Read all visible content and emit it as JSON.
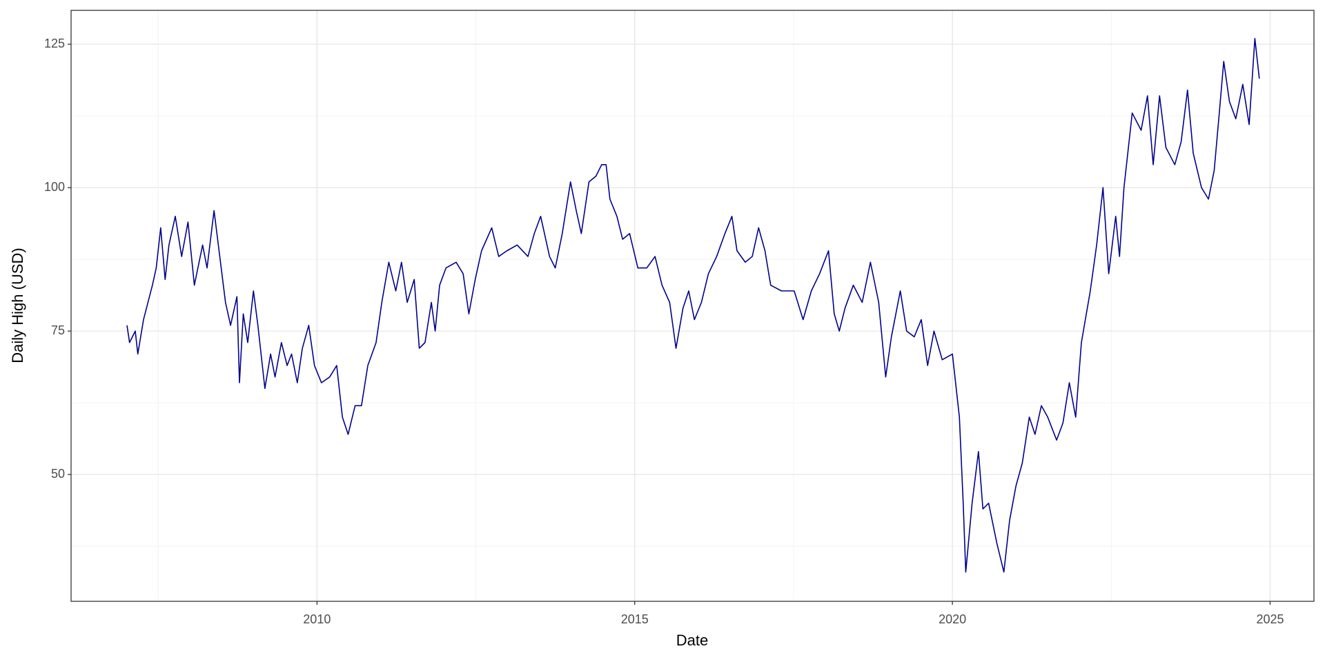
{
  "chart_data": {
    "type": "line",
    "xlabel": "Date",
    "ylabel": "Daily High (USD)",
    "x": [
      2007.01,
      2007.05,
      2007.14,
      2007.18,
      2007.27,
      2007.41,
      2007.47,
      2007.54,
      2007.61,
      2007.67,
      2007.77,
      2007.87,
      2007.97,
      2008.07,
      2008.2,
      2008.27,
      2008.38,
      2008.47,
      2008.56,
      2008.64,
      2008.74,
      2008.78,
      2008.84,
      2008.91,
      2009.0,
      2009.07,
      2009.18,
      2009.27,
      2009.34,
      2009.44,
      2009.53,
      2009.6,
      2009.69,
      2009.77,
      2009.87,
      2009.96,
      2010.07,
      2010.2,
      2010.31,
      2010.4,
      2010.49,
      2010.6,
      2010.7,
      2010.8,
      2010.93,
      2011.02,
      2011.13,
      2011.24,
      2011.33,
      2011.42,
      2011.53,
      2011.61,
      2011.7,
      2011.8,
      2011.86,
      2011.93,
      2012.03,
      2012.19,
      2012.3,
      2012.39,
      2012.49,
      2012.59,
      2012.75,
      2012.86,
      2012.99,
      2013.15,
      2013.32,
      2013.42,
      2013.52,
      2013.66,
      2013.75,
      2013.86,
      2013.99,
      2014.08,
      2014.16,
      2014.28,
      2014.39,
      2014.48,
      2014.55,
      2014.61,
      2014.72,
      2014.81,
      2014.92,
      2015.05,
      2015.19,
      2015.32,
      2015.43,
      2015.55,
      2015.65,
      2015.76,
      2015.85,
      2015.94,
      2016.05,
      2016.16,
      2016.29,
      2016.42,
      2016.53,
      2016.61,
      2016.74,
      2016.85,
      2016.95,
      2017.05,
      2017.14,
      2017.31,
      2017.51,
      2017.65,
      2017.78,
      2017.91,
      2018.05,
      2018.14,
      2018.22,
      2018.31,
      2018.44,
      2018.58,
      2018.71,
      2018.84,
      2018.95,
      2019.04,
      2019.18,
      2019.28,
      2019.4,
      2019.51,
      2019.61,
      2019.71,
      2019.84,
      2020.0,
      2020.11,
      2020.17,
      2020.21,
      2020.31,
      2020.41,
      2020.48,
      2020.57,
      2020.7,
      2020.81,
      2020.9,
      2021.0,
      2021.1,
      2021.21,
      2021.3,
      2021.4,
      2021.5,
      2021.64,
      2021.74,
      2021.84,
      2021.94,
      2022.03,
      2022.17,
      2022.27,
      2022.37,
      2022.46,
      2022.57,
      2022.63,
      2022.7,
      2022.83,
      2022.97,
      2023.07,
      2023.16,
      2023.26,
      2023.36,
      2023.5,
      2023.6,
      2023.7,
      2023.79,
      2023.92,
      2024.03,
      2024.12,
      2024.2,
      2024.27,
      2024.36,
      2024.46,
      2024.57,
      2024.67,
      2024.76,
      2024.83
    ],
    "values": [
      76,
      73,
      75,
      71,
      77,
      83,
      86,
      93,
      84,
      90,
      95,
      88,
      94,
      83,
      90,
      86,
      96,
      88,
      80,
      76,
      81,
      66,
      78,
      73,
      82,
      76,
      65,
      71,
      67,
      73,
      69,
      71,
      66,
      72,
      76,
      69,
      66,
      67,
      69,
      60,
      57,
      62,
      62,
      69,
      73,
      80,
      87,
      82,
      87,
      80,
      84,
      72,
      73,
      80,
      75,
      83,
      86,
      87,
      85,
      78,
      84,
      89,
      93,
      88,
      89,
      90,
      88,
      92,
      95,
      88,
      86,
      92,
      101,
      96,
      92,
      101,
      102,
      104,
      104,
      98,
      95,
      91,
      92,
      86,
      86,
      88,
      83,
      80,
      72,
      79,
      82,
      77,
      80,
      85,
      88,
      92,
      95,
      89,
      87,
      88,
      93,
      89,
      83,
      82,
      82,
      77,
      82,
      85,
      89,
      78,
      75,
      79,
      83,
      80,
      87,
      80,
      67,
      74,
      82,
      75,
      74,
      77,
      69,
      75,
      70,
      71,
      60,
      45,
      33,
      45,
      54,
      44,
      45,
      38,
      33,
      42,
      48,
      52,
      60,
      57,
      62,
      60,
      56,
      59,
      66,
      60,
      73,
      82,
      90,
      100,
      85,
      95,
      88,
      100,
      113,
      110,
      116,
      104,
      116,
      107,
      104,
      108,
      117,
      106,
      100,
      98,
      103,
      113,
      122,
      115,
      112,
      118,
      111,
      126,
      119
    ],
    "color": "#00008b",
    "xlim": [
      2006.13,
      2025.69
    ],
    "xticks": [
      2010,
      2015,
      2020,
      2025
    ],
    "ylim": [
      27.9,
      130.9
    ],
    "yticks": [
      50,
      75,
      100,
      125
    ],
    "grid": true
  }
}
